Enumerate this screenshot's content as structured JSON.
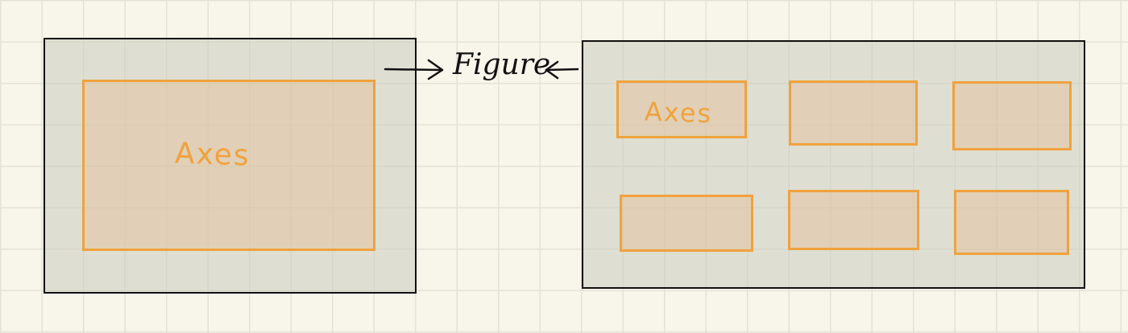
{
  "figure_label": "Figure",
  "left_figure": {
    "axes": [
      {
        "label": "Axes"
      }
    ]
  },
  "right_figure": {
    "axes": [
      {
        "label": "Axes"
      },
      {
        "label": ""
      },
      {
        "label": ""
      },
      {
        "label": ""
      },
      {
        "label": ""
      },
      {
        "label": ""
      }
    ]
  },
  "colors": {
    "background": "#f8f5ea",
    "grid": "#e4e2d5",
    "figure_fill": "#cfd0c3",
    "figure_stroke": "#111111",
    "axes_stroke": "#f0a23c",
    "axes_fill": "#e4c8a8"
  }
}
